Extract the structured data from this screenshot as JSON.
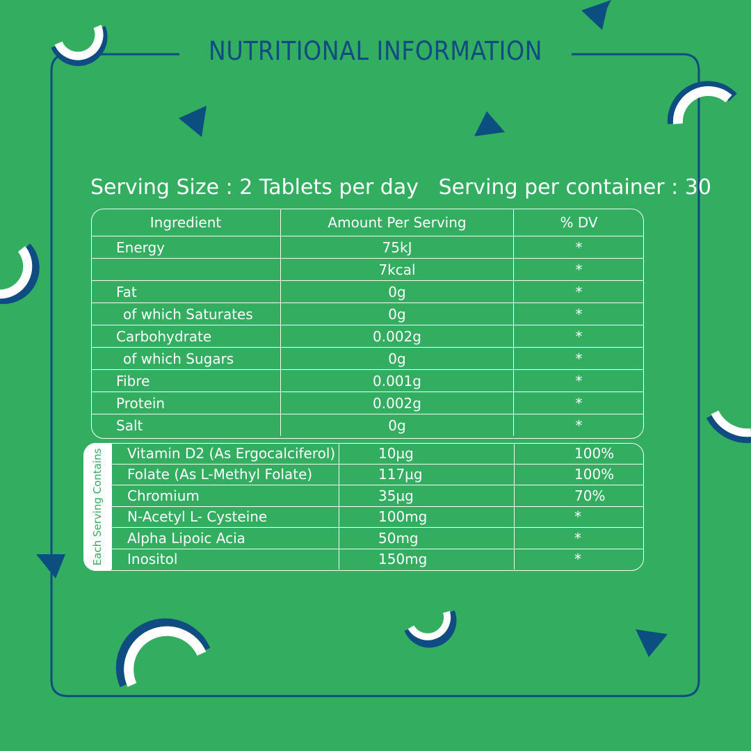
{
  "title": "NUTRITIONAL INFORMATION",
  "serving": {
    "size": "Serving Size : 2 Tablets per day",
    "per_container": "Serving per container : 30"
  },
  "table1": {
    "headers": [
      "Ingredient",
      "Amount Per Serving",
      "% DV"
    ],
    "rows": [
      {
        "name": "Energy",
        "amount": "75kJ",
        "dv": "*"
      },
      {
        "name": "",
        "amount": "7kcal",
        "dv": "*"
      },
      {
        "name": "Fat",
        "amount": "0g",
        "dv": "*"
      },
      {
        "name": "of which Saturates",
        "amount": "0g",
        "dv": "*"
      },
      {
        "name": "Carbohydrate",
        "amount": "0.002g",
        "dv": "*"
      },
      {
        "name": "of which Sugars",
        "amount": "0g",
        "dv": "*"
      },
      {
        "name": "Fibre",
        "amount": "0.001g",
        "dv": "*"
      },
      {
        "name": "Protein",
        "amount": "0.002g",
        "dv": "*"
      },
      {
        "name": "Salt",
        "amount": "0g",
        "dv": "*"
      }
    ]
  },
  "table2": {
    "side_label": "Each Serving Contains",
    "rows": [
      {
        "name": "Vitamin D2 (As Ergocalciferol)",
        "amount": "10µg",
        "dv": "100%"
      },
      {
        "name": "Folate (As L-Methyl Folate)",
        "amount": "117µg",
        "dv": "100%"
      },
      {
        "name": "Chromium",
        "amount": "35µg",
        "dv": "70%"
      },
      {
        "name": "N-Acetyl L- Cysteine",
        "amount": "100mg",
        "dv": "*"
      },
      {
        "name": "Alpha Lipoic Acia",
        "amount": "50mg",
        "dv": "*"
      },
      {
        "name": "Inositol",
        "amount": "150mg",
        "dv": "*"
      }
    ]
  },
  "colors": {
    "background": "#33ad60",
    "accent": "#0f4c81",
    "white": "#ffffff"
  }
}
